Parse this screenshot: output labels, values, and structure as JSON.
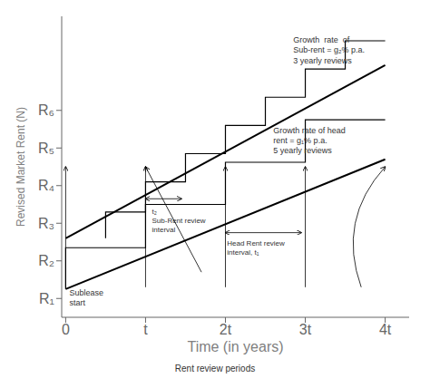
{
  "chart_data": {
    "type": "line",
    "title": "",
    "xlabel": "Time (in years)",
    "ylabel": "Revised Market Rent (N)",
    "xlim": [
      -0.05,
      4.3
    ],
    "ylim": [
      0.5,
      8.5
    ],
    "xticks": [
      0,
      {
        "value": 1,
        "label": "t"
      },
      {
        "value": 2,
        "label": "2t"
      },
      {
        "value": 3,
        "label": "3t"
      },
      {
        "value": 4,
        "label": "4t"
      }
    ],
    "yticks": [
      {
        "value": 1,
        "label": "R₁"
      },
      {
        "value": 2,
        "label": "R₂"
      },
      {
        "value": 3,
        "label": "R₃"
      },
      {
        "value": 4,
        "label": "R₄"
      },
      {
        "value": 5,
        "label": "R₅"
      },
      {
        "value": 6,
        "label": "R₆"
      }
    ],
    "grid": false,
    "series": [
      {
        "color": "#000000",
        "x": [
          0,
          4
        ],
        "values": [
          2.6,
          7.2
        ]
      },
      {
        "color": "#000000",
        "x": [
          0,
          4
        ],
        "values": [
          1.25,
          4.7
        ]
      },
      {
        "color": "#000000",
        "x": [
          0.5,
          0.5,
          1.0,
          1.0,
          1.5,
          1.5,
          2.0,
          2.0,
          2.5,
          2.5,
          3.0,
          3.0,
          3.5,
          3.5,
          4.0
        ],
        "values": [
          2.6,
          3.3,
          3.3,
          4.1,
          4.1,
          4.85,
          4.85,
          5.6,
          5.6,
          6.35,
          6.35,
          7.1,
          7.1,
          7.85,
          7.85
        ]
      },
      {
        "color": "#000000",
        "x": [
          0,
          0,
          1.0,
          1.0,
          2.0,
          2.0,
          3.0,
          3.0,
          4.0
        ],
        "values": [
          1.25,
          2.35,
          2.35,
          3.5,
          3.5,
          4.62,
          4.62,
          5.75,
          5.75
        ]
      }
    ],
    "annotations": [
      "Growth  rate  of\nSub-rent = g₂% p.a.\n3 yearly reviews",
      "Growth rate of head\nrent = g₁% p.a.\n5 yearly reviews",
      "t₂\nSub-Rent review\ninterval",
      "Head Rent review\ninterval, t₁",
      "Sublease\nstart",
      "Rent review periods"
    ]
  }
}
